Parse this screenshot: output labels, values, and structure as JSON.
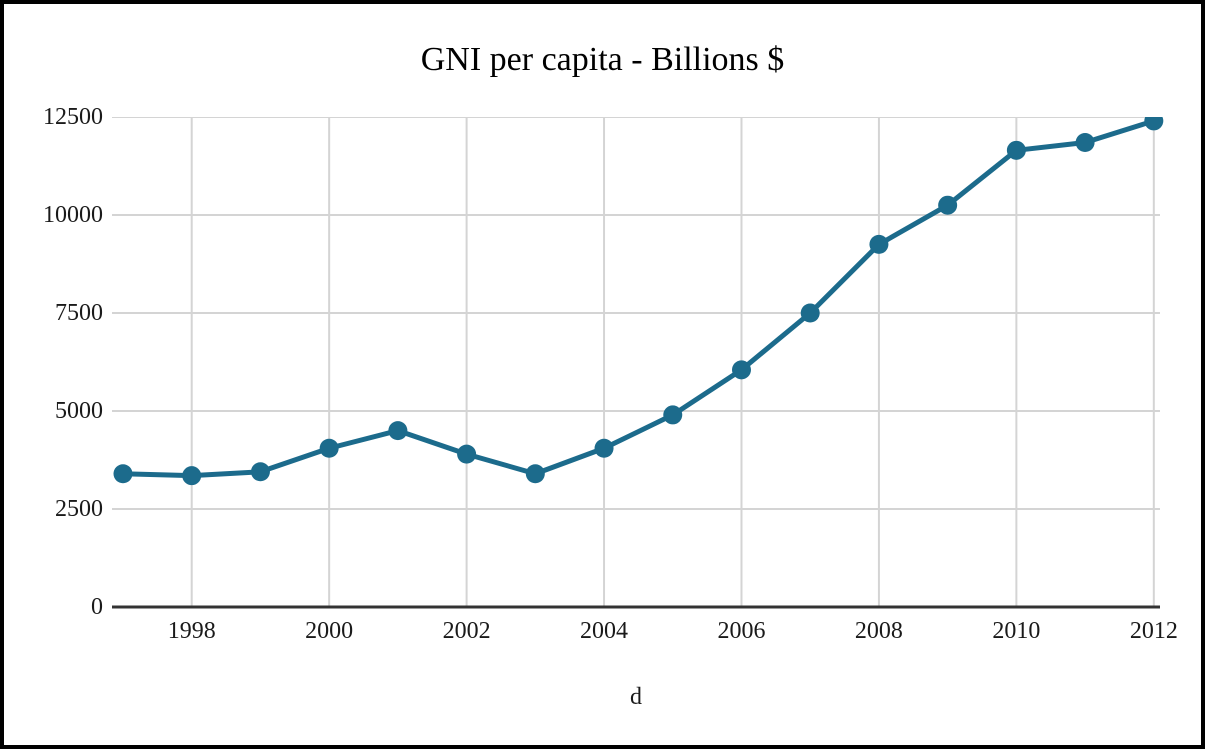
{
  "chart_data": {
    "type": "line",
    "title": "GNI per capita - Billions $",
    "xlabel": "d",
    "ylabel": "",
    "x": [
      1997,
      1998,
      1999,
      2000,
      2001,
      2002,
      2003,
      2004,
      2005,
      2006,
      2007,
      2008,
      2009,
      2010,
      2011,
      2012
    ],
    "series": [
      {
        "name": "GNI per capita",
        "values": [
          3400,
          3350,
          3450,
          4050,
          4500,
          3900,
          3400,
          4050,
          4900,
          6050,
          7500,
          9250,
          10250,
          11650,
          11850,
          12400
        ]
      }
    ],
    "xlim": [
      1996.84,
      2012.09
    ],
    "ylim": [
      0,
      12500
    ],
    "xticks": [
      1998,
      2000,
      2002,
      2004,
      2006,
      2008,
      2010,
      2012
    ],
    "yticks": [
      0,
      2500,
      5000,
      7500,
      10000,
      12500
    ],
    "grid": true,
    "legend": false,
    "marker_radius": 9.5,
    "line_width": 5,
    "colors": {
      "line": "#1c6b8c",
      "grid": "#d4d4d4",
      "axis": "#333333",
      "text": "#1a1a1a",
      "background": "#ffffff",
      "frame_border": "#000000"
    }
  }
}
